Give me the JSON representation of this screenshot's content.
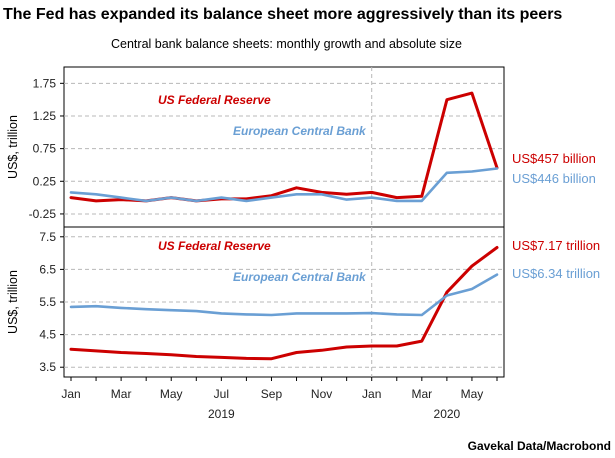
{
  "title": "The Fed has expanded its balance sheet more aggressively than its peers",
  "subtitle": "Central bank balance sheets: monthly growth and absolute size",
  "source": "Gavekal Data/Macrobond",
  "colors": {
    "fed": "#cc0000",
    "ecb": "#6a9fd4",
    "grid": "#b8b8b8"
  },
  "x_axis": {
    "month_ticks": [
      "Jan",
      "Mar",
      "May",
      "Jul",
      "Sep",
      "Nov",
      "Jan",
      "Mar",
      "May"
    ],
    "year_labels": [
      "2019",
      "2020"
    ]
  },
  "chart_data": [
    {
      "type": "line",
      "ylabel": "US$, trillion",
      "yticks": [
        "1.75",
        "1.25",
        "0.75",
        "0.25",
        "-0.25"
      ],
      "ylim": [
        -0.45,
        2.0
      ],
      "grid": true,
      "x": [
        "2019-01",
        "2019-02",
        "2019-03",
        "2019-04",
        "2019-05",
        "2019-06",
        "2019-07",
        "2019-08",
        "2019-09",
        "2019-10",
        "2019-11",
        "2019-12",
        "2020-01",
        "2020-02",
        "2020-03",
        "2020-04",
        "2020-05",
        "2020-06"
      ],
      "series": [
        {
          "name": "US Federal Reserve",
          "end_label": "US$457 billion",
          "values": [
            0.0,
            -0.05,
            -0.03,
            -0.05,
            0.0,
            -0.05,
            -0.02,
            -0.02,
            0.03,
            0.15,
            0.08,
            0.05,
            0.08,
            0.0,
            0.02,
            1.5,
            1.6,
            0.457
          ]
        },
        {
          "name": "European Central Bank",
          "end_label": "US$446 billion",
          "values": [
            0.08,
            0.05,
            0.0,
            -0.05,
            0.0,
            -0.05,
            0.0,
            -0.05,
            0.0,
            0.05,
            0.05,
            -0.03,
            0.0,
            -0.05,
            -0.05,
            0.38,
            0.4,
            0.446
          ]
        }
      ]
    },
    {
      "type": "line",
      "ylabel": "US$, trillion",
      "yticks": [
        "7.5",
        "6.5",
        "5.5",
        "4.5",
        "3.5"
      ],
      "ylim": [
        3.2,
        7.8
      ],
      "grid": true,
      "x": [
        "2019-01",
        "2019-02",
        "2019-03",
        "2019-04",
        "2019-05",
        "2019-06",
        "2019-07",
        "2019-08",
        "2019-09",
        "2019-10",
        "2019-11",
        "2019-12",
        "2020-01",
        "2020-02",
        "2020-03",
        "2020-04",
        "2020-05",
        "2020-06"
      ],
      "series": [
        {
          "name": "US Federal Reserve",
          "end_label": "US$7.17 trillion",
          "values": [
            4.05,
            4.0,
            3.95,
            3.92,
            3.88,
            3.83,
            3.8,
            3.77,
            3.76,
            3.95,
            4.02,
            4.12,
            4.15,
            4.15,
            4.3,
            5.8,
            6.6,
            7.17
          ]
        },
        {
          "name": "European Central Bank",
          "end_label": "US$6.34 trillion",
          "values": [
            5.35,
            5.37,
            5.32,
            5.28,
            5.25,
            5.22,
            5.15,
            5.12,
            5.1,
            5.15,
            5.15,
            5.15,
            5.16,
            5.12,
            5.1,
            5.7,
            5.9,
            6.34
          ]
        }
      ]
    }
  ]
}
